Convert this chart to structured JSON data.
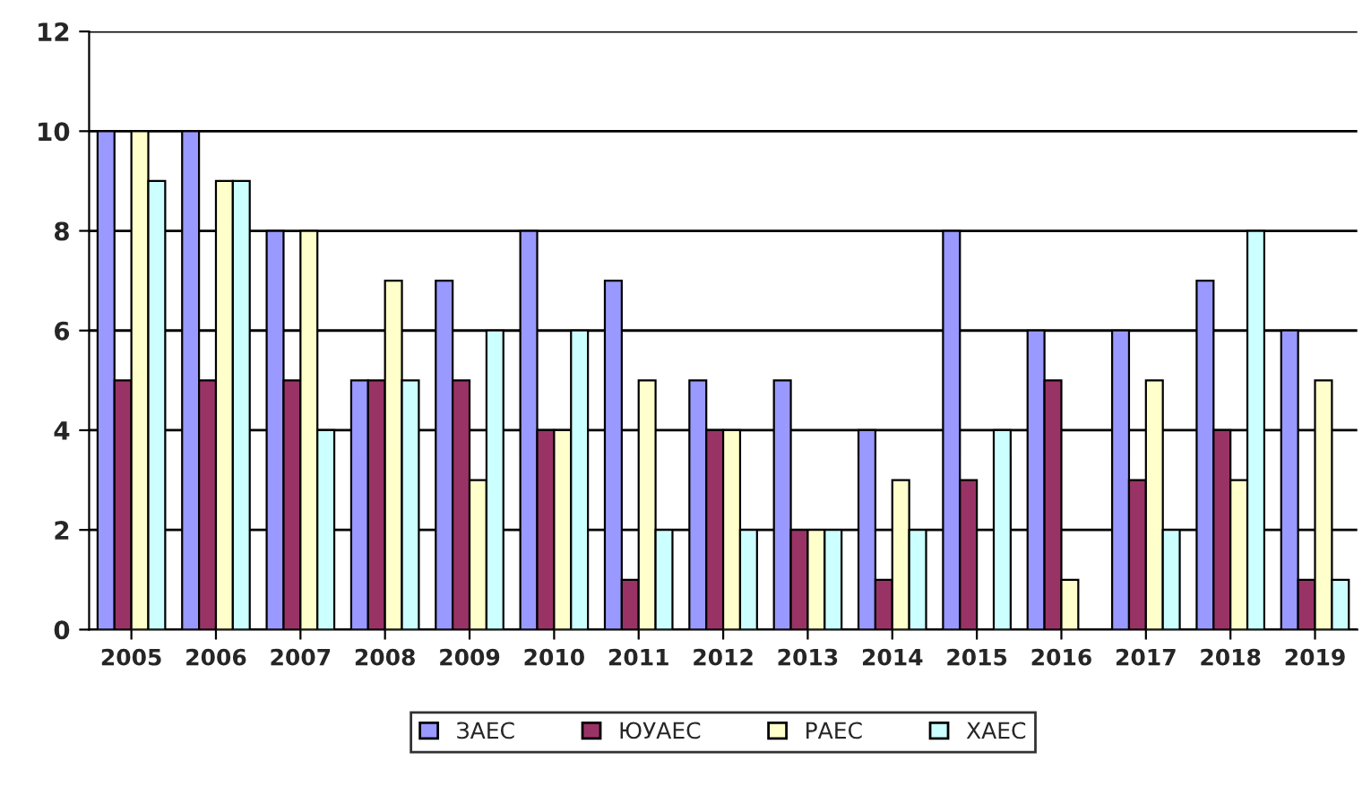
{
  "chart_data": {
    "type": "bar",
    "categories": [
      "2005",
      "2006",
      "2007",
      "2008",
      "2009",
      "2010",
      "2011",
      "2012",
      "2013",
      "2014",
      "2015",
      "2016",
      "2017",
      "2018",
      "2019"
    ],
    "series": [
      {
        "name": "ЗАЕС",
        "color": "#9999ff",
        "values": [
          10,
          10,
          8,
          5,
          7,
          8,
          7,
          5,
          5,
          4,
          8,
          6,
          6,
          7,
          6
        ]
      },
      {
        "name": "ЮУАЕС",
        "color": "#993366",
        "values": [
          5,
          5,
          5,
          5,
          5,
          4,
          1,
          4,
          2,
          1,
          3,
          5,
          3,
          4,
          1
        ]
      },
      {
        "name": "РАЕС",
        "color": "#ffffcc",
        "values": [
          10,
          9,
          8,
          7,
          3,
          4,
          5,
          4,
          2,
          3,
          null,
          1,
          5,
          3,
          5
        ]
      },
      {
        "name": "ХАЕС",
        "color": "#ccffff",
        "values": [
          9,
          9,
          4,
          5,
          6,
          6,
          2,
          2,
          2,
          2,
          4,
          null,
          2,
          8,
          1
        ]
      }
    ],
    "ylim": [
      0,
      12
    ],
    "yticks": [
      0,
      2,
      4,
      6,
      8,
      10,
      12
    ],
    "grid": "y",
    "legend": "bottom"
  }
}
